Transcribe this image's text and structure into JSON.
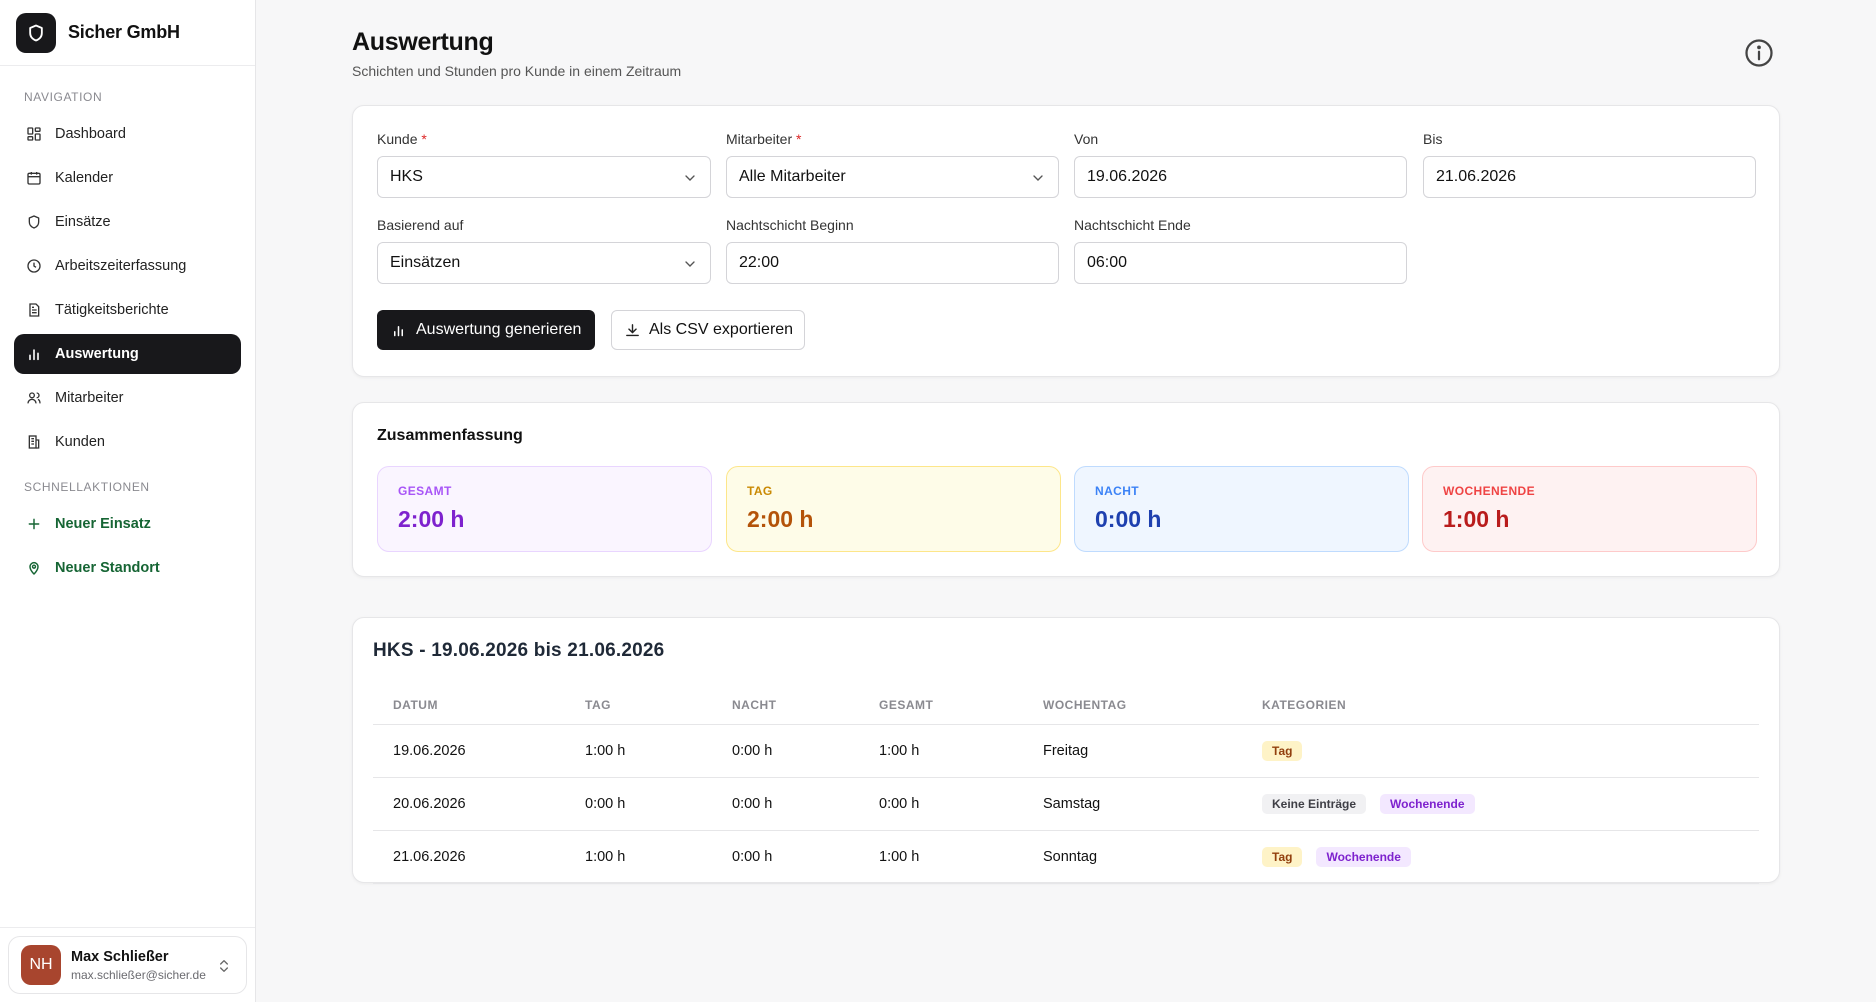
{
  "brand": {
    "name": "Sicher GmbH"
  },
  "sidebar": {
    "nav_label": "NAVIGATION",
    "nav_items": [
      {
        "label": "Dashboard",
        "icon": "dashboard-icon"
      },
      {
        "label": "Kalender",
        "icon": "calendar-icon"
      },
      {
        "label": "Einsätze",
        "icon": "shield-icon"
      },
      {
        "label": "Arbeitszeiterfassung",
        "icon": "clock-icon"
      },
      {
        "label": "Tätigkeitsberichte",
        "icon": "document-icon"
      },
      {
        "label": "Auswertung",
        "icon": "bar-chart-icon",
        "active": true
      },
      {
        "label": "Mitarbeiter",
        "icon": "users-icon"
      },
      {
        "label": "Kunden",
        "icon": "building-icon"
      }
    ],
    "quick_label": "SCHNELLAKTIONEN",
    "quick_items": [
      {
        "label": "Neuer Einsatz",
        "icon": "plus-icon"
      },
      {
        "label": "Neuer Standort",
        "icon": "map-pin-icon"
      }
    ],
    "user": {
      "initials": "NH",
      "name": "Max Schließer",
      "email": "max.schließer@sicher.de"
    }
  },
  "page": {
    "title": "Auswertung",
    "subtitle": "Schichten und Stunden pro Kunde in einem Zeitraum"
  },
  "form": {
    "kunde": {
      "label": "Kunde",
      "required": "*",
      "value": "HKS"
    },
    "mitarbeiter": {
      "label": "Mitarbeiter",
      "required": "*",
      "value": "Alle Mitarbeiter"
    },
    "von": {
      "label": "Von",
      "value": "19.06.2026"
    },
    "bis": {
      "label": "Bis",
      "value": "21.06.2026"
    },
    "basierend": {
      "label": "Basierend auf",
      "value": "Einsätzen"
    },
    "nacht_beginn": {
      "label": "Nachtschicht Beginn",
      "value": "22:00"
    },
    "nacht_ende": {
      "label": "Nachtschicht Ende",
      "value": "06:00"
    },
    "generate_label": "Auswertung generieren",
    "export_label": "Als CSV exportieren"
  },
  "summary": {
    "title": "Zusammenfassung",
    "stats": {
      "total": {
        "label": "GESAMT",
        "value": "2:00 h"
      },
      "day": {
        "label": "TAG",
        "value": "2:00 h"
      },
      "night": {
        "label": "NACHT",
        "value": "0:00 h"
      },
      "weekend": {
        "label": "WOCHENENDE",
        "value": "1:00 h"
      }
    }
  },
  "table": {
    "title": "HKS - 19.06.2026 bis 21.06.2026",
    "headers": [
      "DATUM",
      "TAG",
      "NACHT",
      "GESAMT",
      "WOCHENTAG",
      "KATEGORIEN"
    ],
    "rows": [
      {
        "datum": "19.06.2026",
        "tag": "1:00 h",
        "nacht": "0:00 h",
        "gesamt": "1:00 h",
        "wochentag": "Freitag",
        "cats": [
          "Tag"
        ]
      },
      {
        "datum": "20.06.2026",
        "tag": "0:00 h",
        "nacht": "0:00 h",
        "gesamt": "0:00 h",
        "wochentag": "Samstag",
        "cats": [
          "Keine Einträge",
          "Wochenende"
        ]
      },
      {
        "datum": "21.06.2026",
        "tag": "1:00 h",
        "nacht": "0:00 h",
        "gesamt": "1:00 h",
        "wochentag": "Sonntag",
        "cats": [
          "Tag",
          "Wochenende"
        ]
      }
    ]
  }
}
